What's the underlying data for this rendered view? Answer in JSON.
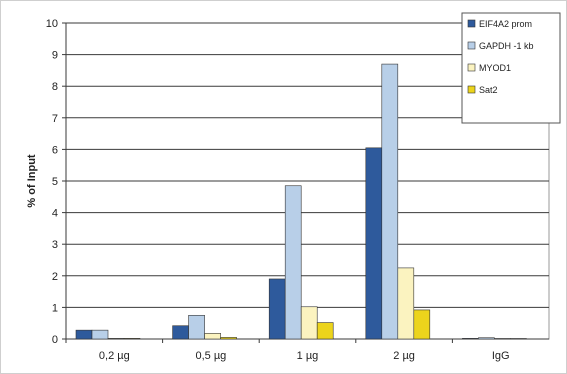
{
  "chart_data": {
    "type": "bar",
    "title": "",
    "xlabel": "",
    "ylabel": "% of Input",
    "ylim": [
      0,
      10
    ],
    "yticks": [
      0,
      1,
      2,
      3,
      4,
      5,
      6,
      7,
      8,
      9,
      10
    ],
    "grid": true,
    "legend_position": "top-right",
    "categories": [
      "0,2 µg",
      "0,5 µg",
      "1 µg",
      "2 µg",
      "IgG"
    ],
    "series": [
      {
        "name": "EIF4A2 prom",
        "color": "#2e5a9c",
        "values": [
          0.28,
          0.42,
          1.9,
          6.05,
          0.02
        ]
      },
      {
        "name": "GAPDH -1 kb",
        "color": "#b8cfe8",
        "values": [
          0.28,
          0.75,
          4.85,
          8.7,
          0.04
        ]
      },
      {
        "name": "MYOD1",
        "color": "#fbf3c0",
        "values": [
          0.02,
          0.18,
          1.02,
          2.25,
          0.0
        ]
      },
      {
        "name": "Sat2",
        "color": "#ecd41c",
        "values": [
          0.02,
          0.05,
          0.52,
          0.92,
          0.0
        ]
      }
    ]
  }
}
